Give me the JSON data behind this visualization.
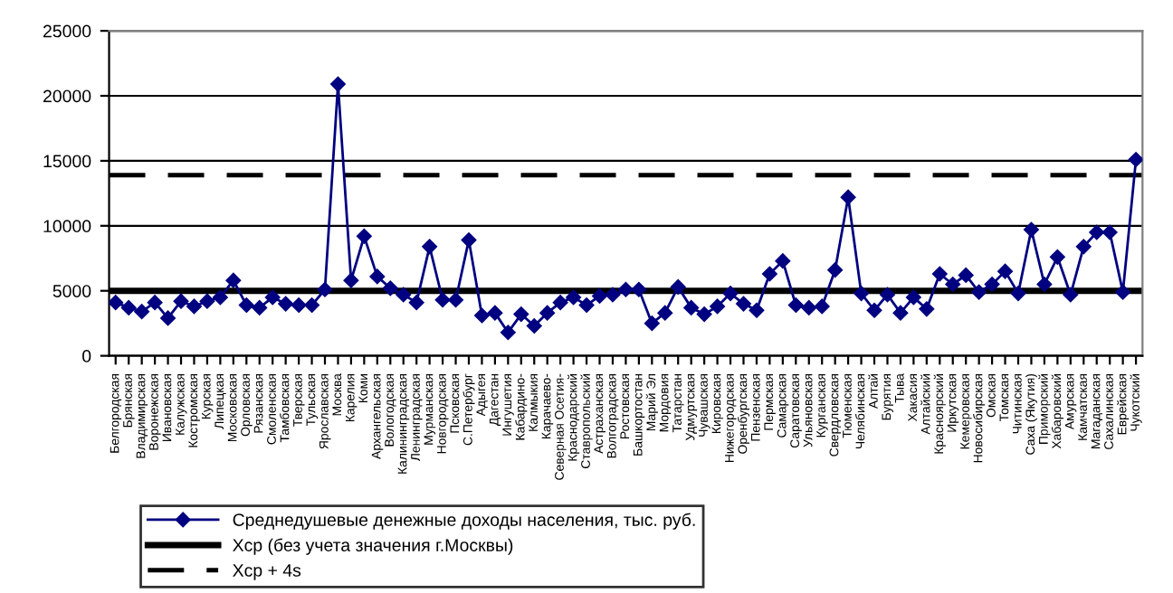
{
  "chart_data": {
    "type": "line",
    "categories": [
      "Белгородская",
      "Брянская",
      "Владимирская",
      "Воронежская",
      "Ивановская",
      "Калужская",
      "Костромская",
      "Курская",
      "Липецкая",
      "Московская",
      "Орловская",
      "Рязанская",
      "Смоленская",
      "Тамбовская",
      "Тверская",
      "Тульская",
      "Ярославская",
      "Москва",
      "Карелия",
      "Коми",
      "Архангельская",
      "Вологодская",
      "Калининградская",
      "Ленинградская",
      "Мурманская",
      "Новгородская",
      "Псковская",
      "С.Петербург",
      "Адыгея",
      "Дагестан",
      "Ингушетия",
      "Кабардино-",
      "Калмыкия",
      "Карачаево-",
      "Северная Осетия-",
      "Краснодарский",
      "Ставропольский",
      "Астраханская",
      "Волгоградская",
      "Ростовская",
      "Башкортостан",
      "Марий Эл",
      "Мордовия",
      "Татарстан",
      "Удмуртская",
      "Чувашская",
      "Кировская",
      "Нижегородская",
      "Оренбургская",
      "Пензенская",
      "Пермская",
      "Самарская",
      "Саратовская",
      "Ульяновская",
      "Курганская",
      "Свердловская",
      "Тюменская",
      "Челябинская",
      "Алтай",
      "Бурятия",
      "Тыва",
      "Хакасия",
      "Алтайский",
      "Красноярский",
      "Иркутская",
      "Кемеровская",
      "Новосибирская",
      "Омская",
      "Томская",
      "Читинская",
      "Саха (Якутия)",
      "Приморский",
      "Хабаровский",
      "Амурская",
      "Камчатская",
      "Магаданская",
      "Сахалинская",
      "Еврейская",
      "Чукотский"
    ],
    "series": [
      {
        "name": "Среднедушевые денежные доходы населения, тыс. руб.",
        "color": "#000080",
        "values": [
          4100,
          3700,
          3400,
          4100,
          2900,
          4200,
          3800,
          4200,
          4500,
          5800,
          3900,
          3700,
          4500,
          4000,
          3900,
          3900,
          5100,
          20900,
          5800,
          9200,
          6100,
          5200,
          4700,
          4100,
          8400,
          4300,
          4300,
          8900,
          3100,
          3300,
          1800,
          3200,
          2300,
          3300,
          4100,
          4500,
          3900,
          4600,
          4700,
          5100,
          5100,
          2500,
          3300,
          5300,
          3700,
          3200,
          3800,
          4800,
          4000,
          3500,
          6300,
          7300,
          3900,
          3700,
          3800,
          6600,
          12200,
          4800,
          3500,
          4700,
          3300,
          4500,
          3600,
          6300,
          5500,
          6200,
          4900,
          5500,
          6500,
          4800,
          9700,
          5500,
          7600,
          4700,
          8400,
          9500,
          9500,
          4900,
          15100
        ]
      }
    ],
    "ref_lines": [
      {
        "axis": "y",
        "value": 5000,
        "label": "Хср (без учета значения г.Москвы)",
        "color": "#000000",
        "line_style": "solid"
      },
      {
        "axis": "y",
        "value": 13900,
        "label": "Хср + 4s",
        "color": "#000000",
        "line_style": "dashed"
      }
    ],
    "ylim": [
      0,
      25000
    ],
    "yticks": [
      0,
      5000,
      10000,
      15000,
      20000,
      25000
    ],
    "grid": "y",
    "legend": "bottom",
    "marker": "diamond",
    "line_style": "solid"
  }
}
